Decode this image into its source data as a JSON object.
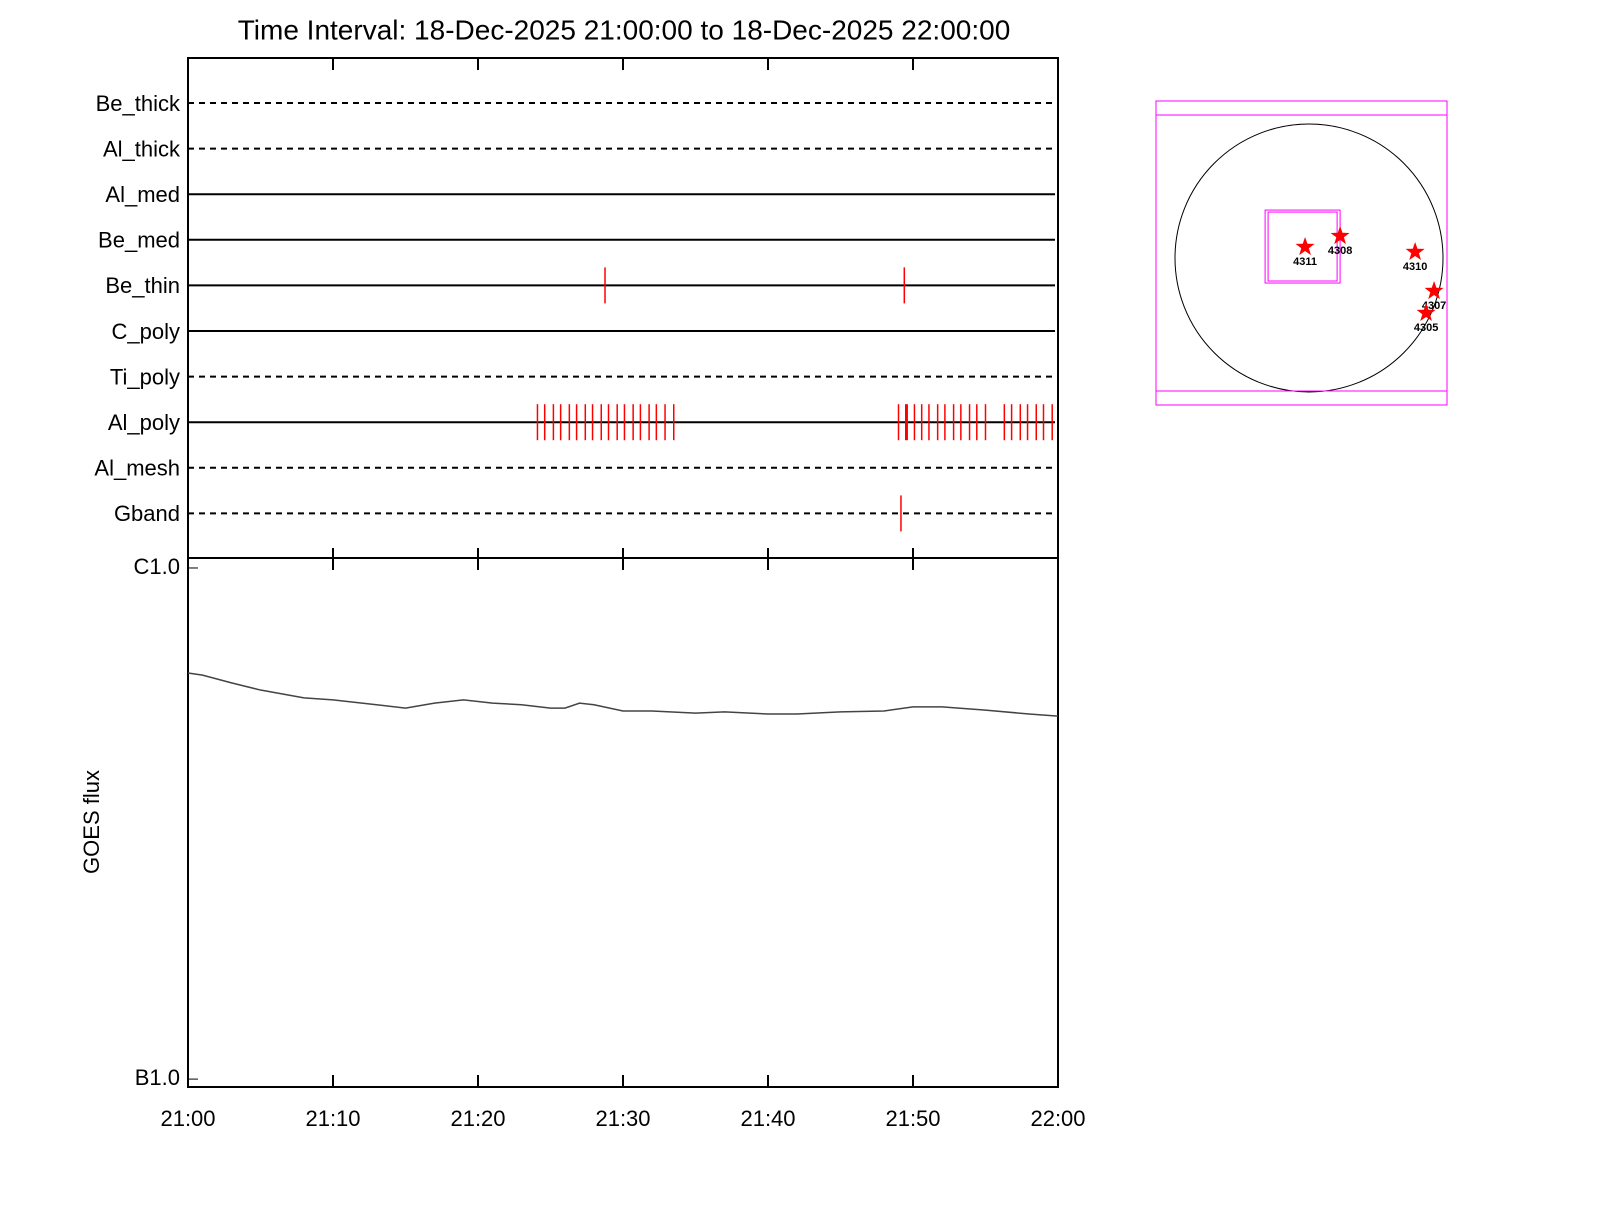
{
  "chart_data": [
    {
      "type": "timeline",
      "title": "Time Interval: 18-Dec-2025 21:00:00 to 18-Dec-2025 22:00:00",
      "categories": [
        "Be_thick",
        "Al_thick",
        "Al_med",
        "Be_med",
        "Be_thin",
        "C_poly",
        "Ti_poly",
        "Al_poly",
        "Al_mesh",
        "Gband"
      ],
      "line_styles": [
        "dashed",
        "dashed",
        "solid",
        "solid",
        "solid",
        "solid",
        "dashed",
        "solid",
        "dashed",
        "dashed"
      ],
      "events": [
        [],
        [],
        [],
        [],
        [
          28.76,
          49.4
        ],
        [],
        [],
        [
          24.1,
          24.6,
          25.2,
          25.7,
          26.3,
          26.8,
          27.4,
          27.9,
          28.5,
          29.0,
          29.6,
          30.1,
          30.7,
          31.2,
          31.8,
          32.3,
          32.9,
          33.5,
          49.0,
          49.5,
          49.6,
          50.1,
          50.6,
          51.1,
          51.7,
          52.2,
          52.8,
          53.3,
          53.9,
          54.4,
          55.0,
          56.3,
          56.8,
          57.4,
          57.9,
          58.5,
          59.0,
          59.6
        ],
        [],
        [
          49.17
        ]
      ],
      "xlim": [
        0,
        60
      ],
      "color": "#ff0000"
    },
    {
      "type": "line",
      "ylabel": "GOES flux",
      "x": [
        0,
        1,
        3,
        5,
        8,
        10,
        13,
        15,
        17,
        19,
        21,
        23,
        25,
        26,
        27,
        28,
        30,
        32,
        35,
        37,
        40,
        42,
        45,
        48,
        50,
        52,
        55,
        58,
        60
      ],
      "values": [
        6.23e-07,
        6.17e-07,
        5.96e-07,
        5.77e-07,
        5.57e-07,
        5.52e-07,
        5.4e-07,
        5.32e-07,
        5.44e-07,
        5.52e-07,
        5.44e-07,
        5.4e-07,
        5.32e-07,
        5.32e-07,
        5.44e-07,
        5.4e-07,
        5.25e-07,
        5.25e-07,
        5.2e-07,
        5.23e-07,
        5.18e-07,
        5.18e-07,
        5.23e-07,
        5.25e-07,
        5.35e-07,
        5.35e-07,
        5.27e-07,
        5.18e-07,
        5.13e-07
      ],
      "log_scale": true,
      "ylim": [
        9.65e-08,
        1.046e-06
      ],
      "yticks": [
        {
          "value": 1e-06,
          "label": "C1.0"
        },
        {
          "value": 1e-07,
          "label": "B1.0"
        }
      ],
      "xlim": [
        0,
        60
      ],
      "xticks": [
        {
          "value": 0,
          "label": "21:00"
        },
        {
          "value": 10,
          "label": "21:10"
        },
        {
          "value": 20,
          "label": "21:20"
        },
        {
          "value": 30,
          "label": "21:30"
        },
        {
          "value": 40,
          "label": "21:40"
        },
        {
          "value": 50,
          "label": "21:50"
        },
        {
          "value": 60,
          "label": "22:00"
        }
      ],
      "color": "#444444"
    },
    {
      "type": "scatter",
      "labels": [
        "4311",
        "4308",
        "4310",
        "4307",
        "4305"
      ],
      "x": [
        -29,
        226,
        772,
        910,
        852
      ],
      "y": [
        80,
        160,
        44,
        -240,
        -400
      ],
      "xlim": [
        -1114,
        1004
      ],
      "ylim": [
        -1070,
        1143
      ],
      "color": "#ff0000",
      "fov_boxes": [
        {
          "x": [
            -320,
            226
          ],
          "y": [
            -182,
            349
          ]
        }
      ],
      "box_color": "#ff00ff"
    }
  ]
}
